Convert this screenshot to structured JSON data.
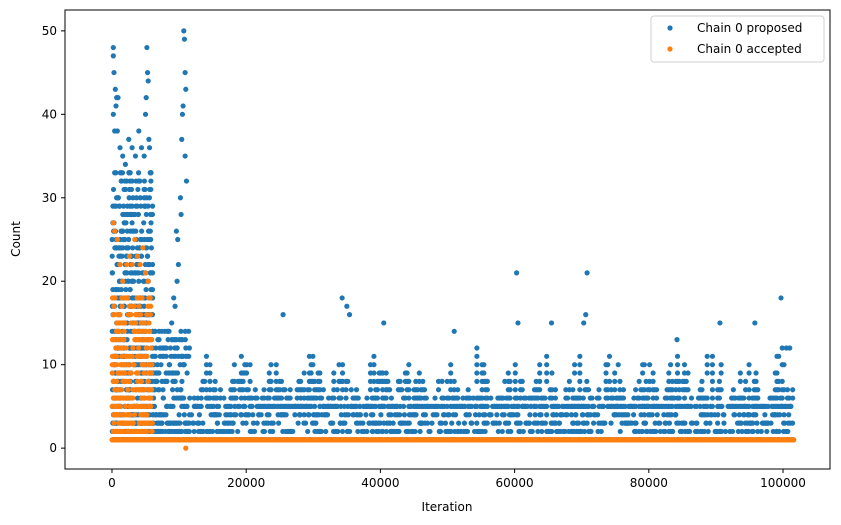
{
  "chart_data": {
    "type": "scatter",
    "title": "",
    "xlabel": "Iteration",
    "ylabel": "Count",
    "xlim": [
      -7000,
      107000
    ],
    "ylim": [
      -2.5,
      52.5
    ],
    "xticks": [
      0,
      20000,
      40000,
      60000,
      80000,
      100000
    ],
    "yticks": [
      0,
      10,
      20,
      30,
      40,
      50
    ],
    "grid": false,
    "legend_position": "top-right",
    "series": [
      {
        "name": "Chain 0 proposed",
        "color": "#1f77b4",
        "description_points": [
          [
            200,
            48
          ],
          [
            200,
            47
          ],
          [
            300,
            45
          ],
          [
            500,
            43
          ],
          [
            700,
            42
          ],
          [
            900,
            42
          ],
          [
            600,
            41
          ],
          [
            200,
            40
          ],
          [
            400,
            38
          ],
          [
            800,
            38
          ],
          [
            1200,
            36
          ],
          [
            1600,
            35
          ],
          [
            2000,
            34
          ],
          [
            2500,
            37
          ],
          [
            3000,
            36
          ],
          [
            3500,
            35
          ],
          [
            4000,
            38
          ],
          [
            4400,
            36
          ],
          [
            4800,
            35
          ],
          [
            5200,
            48
          ],
          [
            5300,
            45
          ],
          [
            5400,
            44
          ],
          [
            5100,
            42
          ],
          [
            5000,
            40
          ],
          [
            5500,
            37
          ],
          [
            5600,
            36
          ],
          [
            5700,
            33
          ],
          [
            5800,
            32
          ],
          [
            10700,
            50
          ],
          [
            10800,
            49
          ],
          [
            10900,
            45
          ],
          [
            11000,
            43
          ],
          [
            10600,
            41
          ],
          [
            10500,
            40
          ],
          [
            10400,
            37
          ],
          [
            10900,
            35
          ],
          [
            11100,
            32
          ],
          [
            10200,
            30
          ],
          [
            10300,
            28
          ],
          [
            9600,
            26
          ],
          [
            9800,
            25
          ],
          [
            9900,
            22
          ],
          [
            9700,
            20
          ],
          [
            9200,
            18
          ],
          [
            9400,
            17
          ],
          [
            8900,
            15
          ],
          [
            8500,
            14
          ],
          [
            8100,
            12
          ],
          [
            7700,
            11
          ],
          [
            7300,
            10
          ],
          [
            7000,
            9
          ],
          [
            6700,
            8
          ],
          [
            6400,
            7
          ],
          [
            6200,
            6
          ],
          [
            25500,
            16
          ],
          [
            34300,
            18
          ],
          [
            35000,
            17
          ],
          [
            35400,
            16
          ],
          [
            40500,
            15
          ],
          [
            51000,
            14
          ],
          [
            60300,
            21
          ],
          [
            60500,
            15
          ],
          [
            65500,
            15
          ],
          [
            70800,
            21
          ],
          [
            70600,
            16
          ],
          [
            70300,
            15
          ],
          [
            84200,
            13
          ],
          [
            90600,
            15
          ],
          [
            95800,
            15
          ],
          [
            99700,
            18
          ],
          [
            100500,
            12
          ],
          [
            101000,
            12
          ]
        ],
        "baseline_bands": [
          {
            "x_range": [
              0,
              6000
            ],
            "y_min": 1,
            "y_max": 33
          },
          {
            "x_range": [
              6000,
              11500
            ],
            "y_min": 1,
            "y_max": 14
          },
          {
            "x_range": [
              11500,
              101500
            ],
            "y_min": 1,
            "y_max": 5
          }
        ]
      },
      {
        "name": "Chain 0 accepted",
        "color": "#ff7f0e",
        "description_points": [
          [
            200,
            27
          ],
          [
            400,
            26
          ],
          [
            800,
            25
          ],
          [
            1200,
            22
          ],
          [
            1600,
            20
          ],
          [
            2200,
            22
          ],
          [
            2600,
            23
          ],
          [
            3000,
            22
          ],
          [
            3400,
            25
          ],
          [
            3800,
            23
          ],
          [
            4200,
            22
          ],
          [
            4600,
            24
          ],
          [
            5000,
            21
          ],
          [
            5400,
            20
          ],
          [
            5700,
            18
          ],
          [
            11000,
            0
          ]
        ],
        "baseline_bands": [
          {
            "x_range": [
              0,
              6000
            ],
            "y_min": 1,
            "y_max": 18
          },
          {
            "x_range": [
              6000,
              101500
            ],
            "y_min": 1,
            "y_max": 1
          }
        ]
      }
    ]
  }
}
